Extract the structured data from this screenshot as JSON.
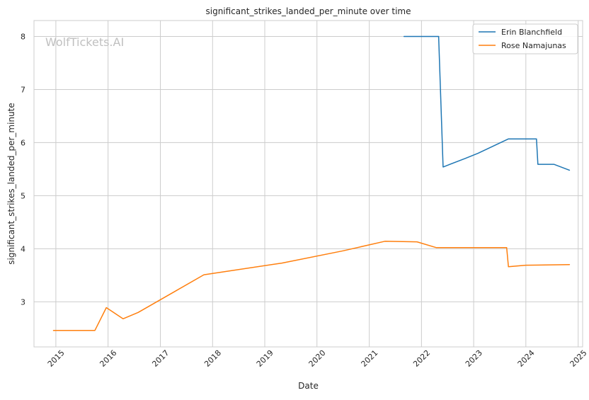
{
  "chart_data": {
    "type": "line",
    "title": "significant_strikes_landed_per_minute over time",
    "xlabel": "Date",
    "ylabel": "significant_strikes_landed_per_minute",
    "xlim": [
      "2014-08-01",
      "2025-02-01"
    ],
    "ylim": [
      2.15,
      8.3
    ],
    "x_ticks": [
      "2015",
      "2016",
      "2017",
      "2018",
      "2019",
      "2020",
      "2021",
      "2022",
      "2023",
      "2024",
      "2025"
    ],
    "y_ticks": [
      3,
      4,
      5,
      6,
      7,
      8
    ],
    "grid": true,
    "legend_position": "top-right",
    "watermark": "WolfTickets.AI",
    "series": [
      {
        "name": "Erin Blanchfield",
        "color": "#1f77b4",
        "points": [
          {
            "x": "2021-09-01",
            "y": 8.0
          },
          {
            "x": "2022-05-01",
            "y": 8.0
          },
          {
            "x": "2022-06-01",
            "y": 5.54
          },
          {
            "x": "2022-11-01",
            "y": 5.7
          },
          {
            "x": "2023-02-01",
            "y": 5.8
          },
          {
            "x": "2023-09-01",
            "y": 6.07
          },
          {
            "x": "2024-03-15",
            "y": 6.07
          },
          {
            "x": "2024-03-25",
            "y": 5.59
          },
          {
            "x": "2024-07-15",
            "y": 5.59
          },
          {
            "x": "2024-11-01",
            "y": 5.48
          }
        ]
      },
      {
        "name": "Rose Namajunas",
        "color": "#ff7f0e",
        "points": [
          {
            "x": "2014-12-15",
            "y": 2.46
          },
          {
            "x": "2015-10-01",
            "y": 2.46
          },
          {
            "x": "2015-12-20",
            "y": 2.89
          },
          {
            "x": "2016-04-15",
            "y": 2.68
          },
          {
            "x": "2016-07-30",
            "y": 2.8
          },
          {
            "x": "2017-04-15",
            "y": 3.2
          },
          {
            "x": "2017-11-01",
            "y": 3.51
          },
          {
            "x": "2019-05-01",
            "y": 3.73
          },
          {
            "x": "2020-07-01",
            "y": 3.96
          },
          {
            "x": "2021-04-20",
            "y": 4.14
          },
          {
            "x": "2021-12-01",
            "y": 4.13
          },
          {
            "x": "2022-04-15",
            "y": 4.02
          },
          {
            "x": "2023-08-20",
            "y": 4.02
          },
          {
            "x": "2023-09-01",
            "y": 3.66
          },
          {
            "x": "2024-01-01",
            "y": 3.69
          },
          {
            "x": "2024-11-01",
            "y": 3.7
          }
        ]
      }
    ]
  }
}
